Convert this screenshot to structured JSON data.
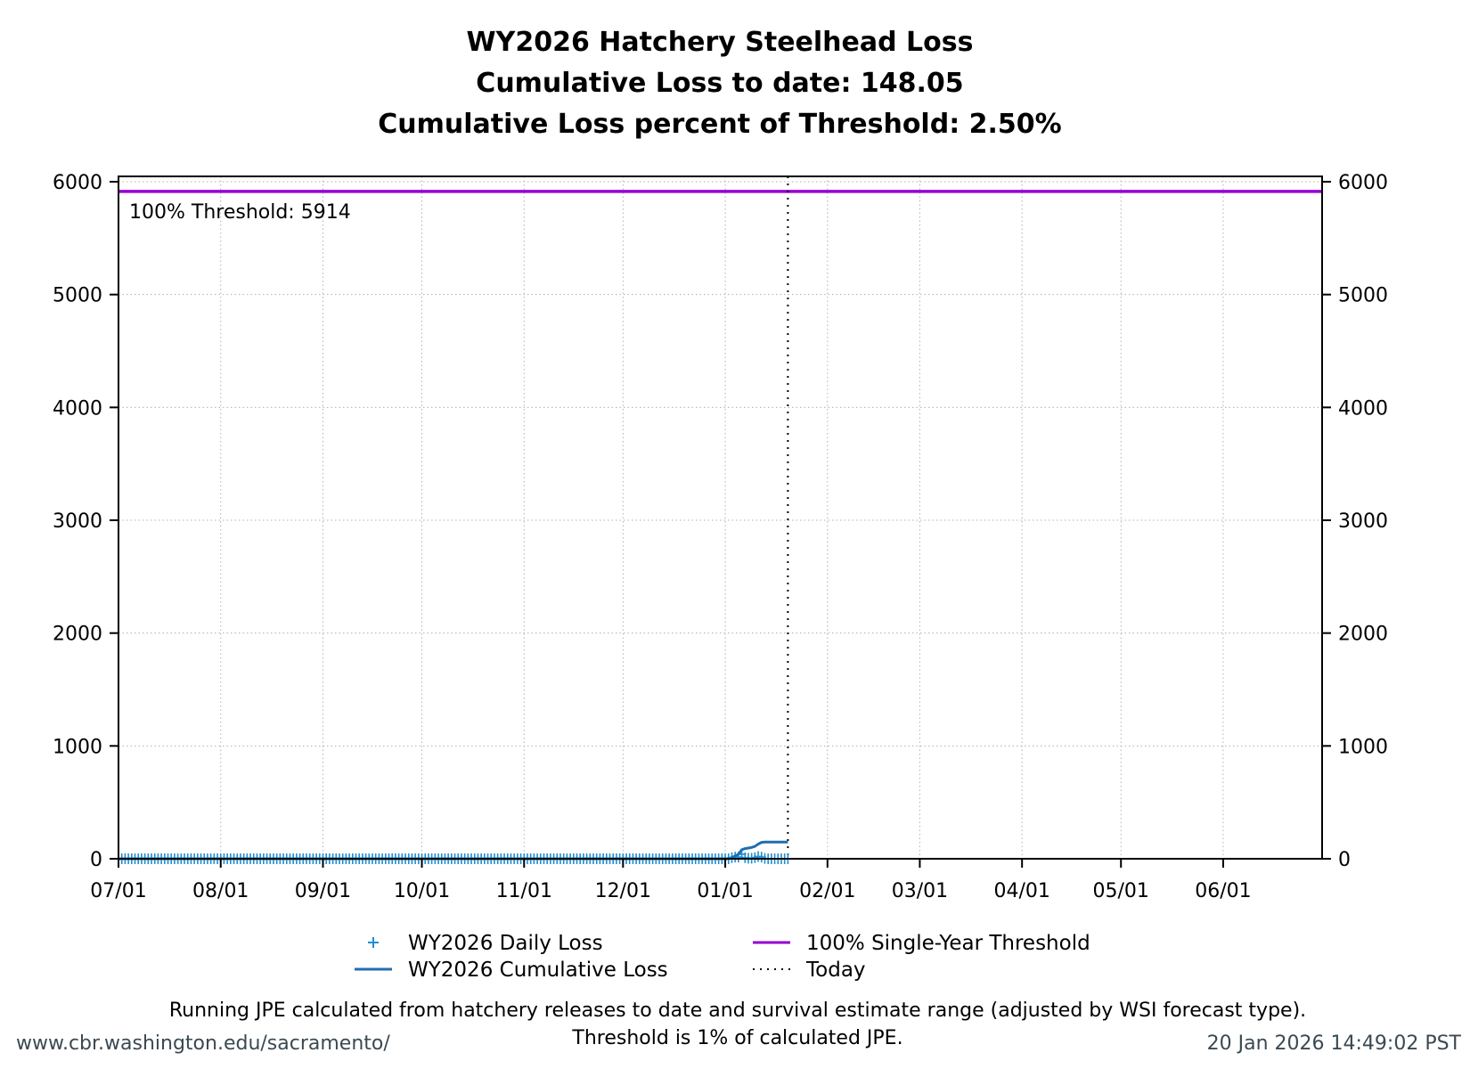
{
  "chart_data": {
    "type": "line",
    "title": [
      "WY2026 Hatchery Steelhead Loss",
      "Cumulative Loss to date: 148.05",
      "Cumulative Loss percent of Threshold: 2.50%"
    ],
    "xlabel": "",
    "ylabel": "",
    "xlim": [
      "2025-07-01",
      "2026-06-30"
    ],
    "ylim": [
      0,
      6000
    ],
    "y_ticks": [
      0,
      1000,
      2000,
      3000,
      4000,
      5000,
      6000
    ],
    "y_ticks_right": [
      0,
      1000,
      2000,
      3000,
      4000,
      5000,
      6000
    ],
    "x_ticks": [
      {
        "date": "2025-07-01",
        "label": "07/01"
      },
      {
        "date": "2025-08-01",
        "label": "08/01"
      },
      {
        "date": "2025-09-01",
        "label": "09/01"
      },
      {
        "date": "2025-10-01",
        "label": "10/01"
      },
      {
        "date": "2025-11-01",
        "label": "11/01"
      },
      {
        "date": "2025-12-01",
        "label": "12/01"
      },
      {
        "date": "2026-01-01",
        "label": "01/01"
      },
      {
        "date": "2026-02-01",
        "label": "02/01"
      },
      {
        "date": "2026-03-01",
        "label": "03/01"
      },
      {
        "date": "2026-04-01",
        "label": "04/01"
      },
      {
        "date": "2026-05-01",
        "label": "05/01"
      },
      {
        "date": "2026-06-01",
        "label": "06/01"
      }
    ],
    "grid": true,
    "legend_position": "bottom",
    "series": [
      {
        "name": "WY2026 Daily Loss",
        "style": "plus-markers",
        "color": "#1f8fd0",
        "start_date": "2025-07-01",
        "values": [
          0,
          0,
          0,
          0,
          0,
          0,
          0,
          0,
          0,
          0,
          0,
          0,
          0,
          0,
          0,
          0,
          0,
          0,
          0,
          0,
          0,
          0,
          0,
          0,
          0,
          0,
          0,
          0,
          0,
          0,
          0,
          0,
          0,
          0,
          0,
          0,
          0,
          0,
          0,
          0,
          0,
          0,
          0,
          0,
          0,
          0,
          0,
          0,
          0,
          0,
          0,
          0,
          0,
          0,
          0,
          0,
          0,
          0,
          0,
          0,
          0,
          0,
          0,
          0,
          0,
          0,
          0,
          0,
          0,
          0,
          0,
          0,
          0,
          0,
          0,
          0,
          0,
          0,
          0,
          0,
          0,
          0,
          0,
          0,
          0,
          0,
          0,
          0,
          0,
          0,
          0,
          0,
          0,
          0,
          0,
          0,
          0,
          0,
          0,
          0,
          0,
          0,
          0,
          0,
          0,
          0,
          0,
          0,
          0,
          0,
          0,
          0,
          0,
          0,
          0,
          0,
          0,
          0,
          0,
          0,
          0,
          0,
          0,
          0,
          0,
          0,
          0,
          0,
          0,
          0,
          0,
          0,
          0,
          0,
          0,
          0,
          0,
          0,
          0,
          0,
          0,
          0,
          0,
          0,
          0,
          0,
          0,
          0,
          0,
          0,
          0,
          0,
          0,
          0,
          0,
          0,
          0,
          0,
          0,
          0,
          0,
          0,
          0,
          0,
          0,
          0,
          0,
          0,
          0,
          0,
          0,
          0,
          0,
          0,
          0,
          0,
          0,
          0,
          0,
          0,
          0,
          0,
          0,
          0,
          0,
          0,
          10,
          15,
          15,
          40,
          10,
          5,
          5,
          10,
          20,
          15,
          3.05,
          0,
          0,
          0,
          0,
          0,
          0,
          0
        ]
      },
      {
        "name": "WY2026 Cumulative Loss",
        "style": "line",
        "color": "#1f6fb0",
        "start_date": "2025-07-01",
        "values": [
          0,
          0,
          0,
          0,
          0,
          0,
          0,
          0,
          0,
          0,
          0,
          0,
          0,
          0,
          0,
          0,
          0,
          0,
          0,
          0,
          0,
          0,
          0,
          0,
          0,
          0,
          0,
          0,
          0,
          0,
          0,
          0,
          0,
          0,
          0,
          0,
          0,
          0,
          0,
          0,
          0,
          0,
          0,
          0,
          0,
          0,
          0,
          0,
          0,
          0,
          0,
          0,
          0,
          0,
          0,
          0,
          0,
          0,
          0,
          0,
          0,
          0,
          0,
          0,
          0,
          0,
          0,
          0,
          0,
          0,
          0,
          0,
          0,
          0,
          0,
          0,
          0,
          0,
          0,
          0,
          0,
          0,
          0,
          0,
          0,
          0,
          0,
          0,
          0,
          0,
          0,
          0,
          0,
          0,
          0,
          0,
          0,
          0,
          0,
          0,
          0,
          0,
          0,
          0,
          0,
          0,
          0,
          0,
          0,
          0,
          0,
          0,
          0,
          0,
          0,
          0,
          0,
          0,
          0,
          0,
          0,
          0,
          0,
          0,
          0,
          0,
          0,
          0,
          0,
          0,
          0,
          0,
          0,
          0,
          0,
          0,
          0,
          0,
          0,
          0,
          0,
          0,
          0,
          0,
          0,
          0,
          0,
          0,
          0,
          0,
          0,
          0,
          0,
          0,
          0,
          0,
          0,
          0,
          0,
          0,
          0,
          0,
          0,
          0,
          0,
          0,
          0,
          0,
          0,
          0,
          0,
          0,
          0,
          0,
          0,
          0,
          0,
          0,
          0,
          0,
          0,
          0,
          0,
          0,
          0,
          0,
          10,
          25,
          40,
          80,
          90,
          95,
          100,
          110,
          130,
          145,
          148.05,
          148.05,
          148.05,
          148.05,
          148.05,
          148.05,
          148.05,
          148.05
        ]
      },
      {
        "name": "100% Single-Year Threshold",
        "style": "line",
        "color": "#9400d3",
        "value": 5914
      },
      {
        "name": "Today",
        "style": "dotted-vertical",
        "color": "#000000",
        "date": "2026-01-20"
      }
    ],
    "annotations": [
      "100% Threshold: 5914"
    ]
  },
  "footer": {
    "note_line1": "Running JPE calculated from hatchery releases to date and survival estimate range (adjusted by WSI forecast type).",
    "note_line2": "Threshold is 1% of calculated JPE.",
    "url": "www.cbr.washington.edu/sacramento/",
    "timestamp": "20 Jan 2026 14:49:02 PST"
  }
}
